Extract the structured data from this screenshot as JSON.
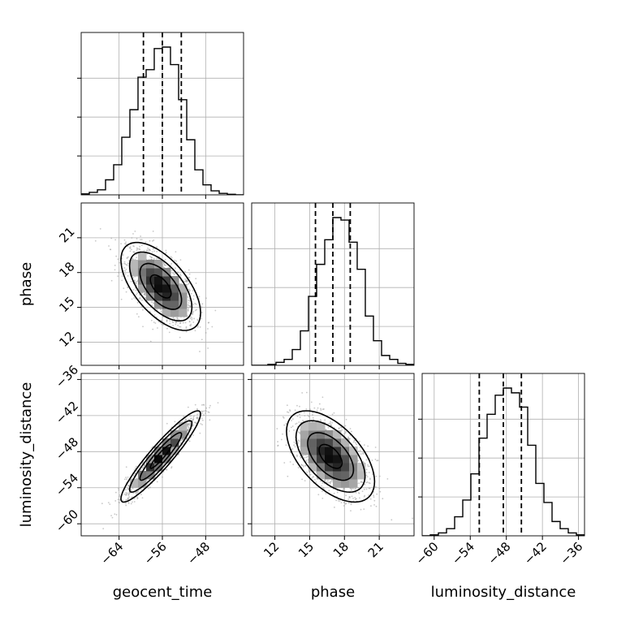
{
  "chart_data": {
    "type": "corner",
    "parameters": [
      "geocent_time",
      "phase",
      "luminosity_distance"
    ],
    "axis_labels": {
      "x": [
        "geocent_time",
        "phase",
        "luminosity_distance"
      ],
      "y_row2": "phase",
      "y_row3": "luminosity_distance"
    },
    "ranges": {
      "geocent_time": [
        -71,
        -41
      ],
      "phase": [
        10,
        24
      ],
      "luminosity_distance": [
        -62,
        -35
      ]
    },
    "ticks": {
      "geocent_time": [
        "-64",
        "-56",
        "-48"
      ],
      "phase": [
        "12",
        "15",
        "18",
        "21"
      ],
      "luminosity_distance_x": [
        "-60",
        "-54",
        "-48",
        "-42",
        "-36"
      ],
      "luminosity_distance_y": [
        "-60",
        "-54",
        "-48",
        "-42",
        "-36"
      ],
      "phase_y": [
        "12",
        "15",
        "18",
        "21"
      ]
    },
    "tick_values": {
      "geocent_time": [
        -64,
        -56,
        -48
      ],
      "phase": [
        12,
        15,
        18,
        21
      ],
      "luminosity_distance": [
        -60,
        -54,
        -48,
        -42,
        -36
      ]
    },
    "quantiles": {
      "geocent_time": [
        -59.5,
        -56,
        -52.5
      ],
      "phase": [
        15.5,
        17.0,
        18.5
      ],
      "luminosity_distance": [
        -52.5,
        -48.5,
        -45.5
      ]
    },
    "histograms": {
      "geocent_time": {
        "edges_start": -71,
        "bin_width": 1.5,
        "counts": [
          2,
          5,
          10,
          30,
          60,
          115,
          170,
          235,
          250,
          292,
          295,
          260,
          190,
          110,
          50,
          20,
          8,
          3,
          1,
          0
        ]
      },
      "phase": {
        "edges_start": 10,
        "bin_width": 0.7,
        "counts": [
          0,
          0,
          2,
          6,
          12,
          32,
          70,
          140,
          205,
          255,
          300,
          295,
          250,
          195,
          100,
          50,
          20,
          12,
          4,
          2
        ]
      },
      "luminosity_distance": {
        "edges_start": -62,
        "bin_width": 1.35,
        "counts": [
          0,
          2,
          6,
          15,
          40,
          75,
          130,
          205,
          255,
          295,
          310,
          300,
          270,
          190,
          110,
          70,
          30,
          15,
          6,
          2
        ]
      }
    },
    "grid": true,
    "show_quantile_lines": true
  }
}
